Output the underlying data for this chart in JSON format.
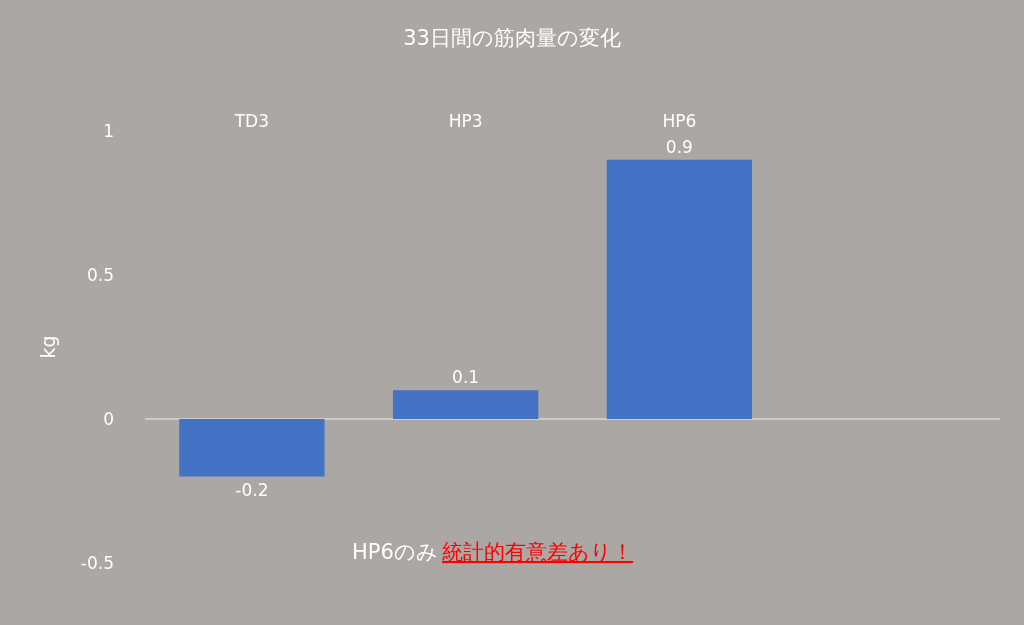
{
  "chart_data": {
    "type": "bar",
    "title": "33日間の筋肉量の変化",
    "ylabel": "kg",
    "categories": [
      "TD3",
      "HP3",
      "HP6",
      null
    ],
    "values": [
      -0.2,
      0.1,
      0.9,
      null
    ],
    "color": "#4472c4",
    "ylim": [
      -0.5,
      1
    ],
    "yticks": [
      -0.5,
      0,
      0.5,
      1
    ],
    "ref_lines": [
      {
        "axis": "y",
        "value": 0,
        "color": "#d9d9d9"
      }
    ],
    "data_labels": true,
    "grid": false,
    "legend": false,
    "annotations": [
      "HP6のみ",
      "統計的有意差あり！"
    ]
  }
}
